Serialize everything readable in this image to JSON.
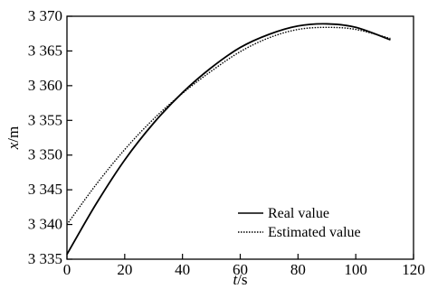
{
  "chart_data": {
    "type": "line",
    "title": "",
    "xlabel": "t/s",
    "ylabel": "x/m",
    "xlim": [
      0,
      120
    ],
    "ylim": [
      3335,
      3370
    ],
    "xticks": [
      0,
      20,
      40,
      60,
      80,
      100,
      120
    ],
    "xtick_labels": [
      "0",
      "20",
      "40",
      "60",
      "80",
      "100",
      "120"
    ],
    "yticks": [
      3335,
      3340,
      3345,
      3350,
      3355,
      3360,
      3365,
      3370
    ],
    "ytick_labels": [
      "3 335",
      "3 340",
      "3 345",
      "3 350",
      "3 355",
      "3 360",
      "3 365",
      "3 370"
    ],
    "grid": false,
    "legend_position": "bottom-right",
    "series": [
      {
        "name": "Real value",
        "style": "solid",
        "x": [
          0,
          10,
          20,
          30,
          40,
          50,
          60,
          70,
          80,
          90,
          100,
          112
        ],
        "y": [
          3335.7,
          3342.9,
          3349.3,
          3354.6,
          3359.0,
          3362.6,
          3365.5,
          3367.4,
          3368.6,
          3368.9,
          3368.4,
          3366.6
        ]
      },
      {
        "name": "Estimated value",
        "style": "dotted",
        "x": [
          0,
          10,
          20,
          30,
          40,
          50,
          60,
          70,
          80,
          90,
          100,
          112
        ],
        "y": [
          3340.0,
          3345.7,
          3350.8,
          3355.2,
          3358.9,
          3362.1,
          3364.9,
          3366.9,
          3368.1,
          3368.4,
          3368.1,
          3366.8
        ]
      }
    ]
  }
}
